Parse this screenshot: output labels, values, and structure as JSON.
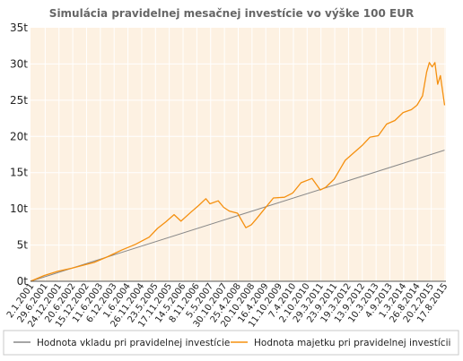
{
  "chart_data": {
    "type": "line",
    "title": "Simulácia pravidelnej mesačnej investície vo výške 100 EUR",
    "xlabel": "",
    "ylabel": "",
    "ylim": [
      0,
      35000
    ],
    "yticks": [
      {
        "value": 0,
        "label": "0t"
      },
      {
        "value": 5000,
        "label": "5t"
      },
      {
        "value": 10000,
        "label": "10t"
      },
      {
        "value": 15000,
        "label": "15t"
      },
      {
        "value": 20000,
        "label": "20t"
      },
      {
        "value": 25000,
        "label": "25t"
      },
      {
        "value": 30000,
        "label": "30t"
      },
      {
        "value": 35000,
        "label": "35t"
      }
    ],
    "xticks": [
      "2.1.2001",
      "29.6.2001",
      "24.12.2001",
      "20.6.2002",
      "15.12.2002",
      "11.6.2003",
      "6.12.2003",
      "1.6.2004",
      "26.11.2004",
      "23.5.2005",
      "17.11.2005",
      "14.5.2006",
      "8.11.2006",
      "5.5.2007",
      "30.10.2007",
      "25.4.2008",
      "20.10.2008",
      "16.4.2009",
      "11.10.2009",
      "7.4.2010",
      "2.10.2010",
      "29.3.2011",
      "23.9.2011",
      "19.3.2012",
      "13.9.2012",
      "10.3.2013",
      "4.9.2013",
      "1.3.2014",
      "26.8.2014",
      "20.2.2015",
      "17.8.2015"
    ],
    "x_range": [
      2001.0,
      2016.05
    ],
    "grid": true,
    "legend_position": "bottom",
    "colors": {
      "series1": "#888888",
      "series2": "#f5900f",
      "plot_bg": "#fdf1e2",
      "grid": "#ffffff"
    },
    "series": [
      {
        "name": "Hodnota vkladu pri pravidelnej investície",
        "x": [
          2001.0,
          2016.0
        ],
        "values": [
          0,
          18100
        ]
      },
      {
        "name": "Hodnota majetku pri pravidelnej investícii",
        "x": [
          2001.0,
          2001.5,
          2002.0,
          2002.5,
          2003.0,
          2003.3,
          2003.8,
          2004.3,
          2004.8,
          2005.3,
          2005.6,
          2005.9,
          2006.2,
          2006.45,
          2006.8,
          2007.1,
          2007.35,
          2007.5,
          2007.8,
          2008.0,
          2008.2,
          2008.5,
          2008.8,
          2009.0,
          2009.2,
          2009.5,
          2009.8,
          2010.2,
          2010.5,
          2010.8,
          2011.2,
          2011.5,
          2011.7,
          2012.0,
          2012.4,
          2012.7,
          2013.0,
          2013.3,
          2013.6,
          2013.9,
          2014.2,
          2014.5,
          2014.8,
          2015.0,
          2015.2,
          2015.35,
          2015.45,
          2015.55,
          2015.65,
          2015.75,
          2015.85,
          2015.95,
          2016.0
        ],
        "values": [
          0,
          800,
          1400,
          1800,
          2300,
          2600,
          3400,
          4300,
          5100,
          6100,
          7300,
          8200,
          9200,
          8300,
          9500,
          10500,
          11400,
          10700,
          11100,
          10200,
          9700,
          9400,
          7400,
          7800,
          8700,
          10100,
          11500,
          11600,
          12200,
          13600,
          14200,
          12600,
          13000,
          14100,
          16700,
          17700,
          18700,
          19900,
          20100,
          21700,
          22200,
          23300,
          23700,
          24300,
          25600,
          28900,
          30200,
          29600,
          30200,
          27200,
          28400,
          25700,
          24300
        ]
      }
    ]
  }
}
